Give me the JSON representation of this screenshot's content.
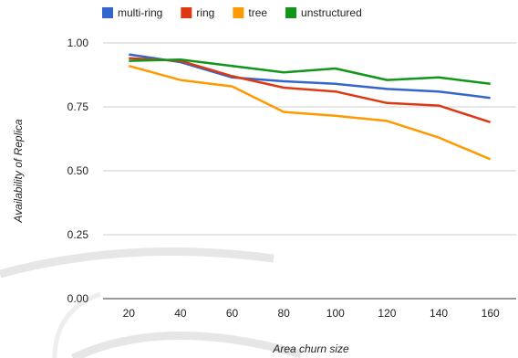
{
  "chart_data": {
    "type": "line",
    "title": "",
    "xlabel": "Area churn size",
    "ylabel": "Availability of Replica",
    "categories": [
      "20",
      "40",
      "60",
      "80",
      "100",
      "120",
      "140",
      "160"
    ],
    "yticks": [
      "0.00",
      "0.25",
      "0.50",
      "0.75",
      "1.00"
    ],
    "ylim": [
      0,
      1
    ],
    "grid": true,
    "legend_position": "top",
    "series": [
      {
        "name": "multi-ring",
        "color": "#3366cc",
        "values": [
          0.955,
          0.925,
          0.865,
          0.85,
          0.84,
          0.82,
          0.81,
          0.785
        ]
      },
      {
        "name": "ring",
        "color": "#dc3912",
        "values": [
          0.94,
          0.93,
          0.87,
          0.825,
          0.81,
          0.765,
          0.755,
          0.69
        ]
      },
      {
        "name": "tree",
        "color": "#ff9900",
        "values": [
          0.91,
          0.855,
          0.83,
          0.73,
          0.715,
          0.695,
          0.63,
          0.545
        ]
      },
      {
        "name": "unstructured",
        "color": "#109618",
        "values": [
          0.93,
          0.935,
          0.91,
          0.885,
          0.9,
          0.855,
          0.865,
          0.84
        ]
      }
    ]
  }
}
